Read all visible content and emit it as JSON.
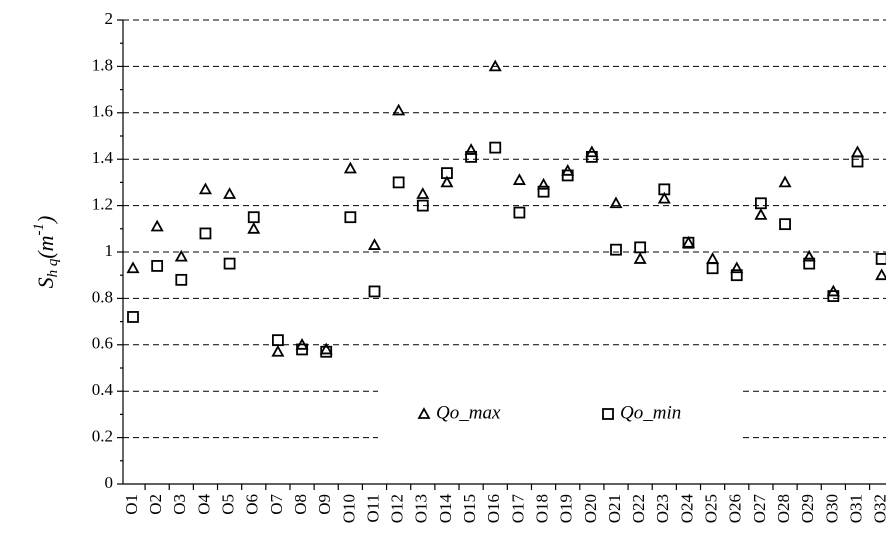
{
  "chart_data": {
    "type": "scatter",
    "y_label": {
      "base": "S",
      "sub": "h q",
      "open": "(m",
      "sup": "-1",
      "close": ")"
    },
    "categories": [
      "O1",
      "O2",
      "O3",
      "O4",
      "O5",
      "O6",
      "O7",
      "O8",
      "O9",
      "O10",
      "O11",
      "O12",
      "O13",
      "O14",
      "O15",
      "O16",
      "O17",
      "O18",
      "O19",
      "O20",
      "O21",
      "O22",
      "O23",
      "O24",
      "O25",
      "O26",
      "O27",
      "O28",
      "O29",
      "O30",
      "O31",
      "O32"
    ],
    "series": [
      {
        "name": "Qo_max",
        "marker": "triangle",
        "color": "#000000",
        "values": [
          0.93,
          1.11,
          0.98,
          1.27,
          1.25,
          1.1,
          0.57,
          0.6,
          0.58,
          1.36,
          1.03,
          1.61,
          1.25,
          1.3,
          1.44,
          1.8,
          1.31,
          1.29,
          1.35,
          1.43,
          1.21,
          0.97,
          1.23,
          1.04,
          0.97,
          0.93,
          1.16,
          1.3,
          0.98,
          0.83,
          1.43,
          0.9
        ]
      },
      {
        "name": "Qo_min",
        "marker": "square",
        "color": "#000000",
        "values": [
          0.72,
          0.94,
          0.88,
          1.08,
          0.95,
          1.15,
          0.62,
          0.58,
          0.57,
          1.15,
          0.83,
          1.3,
          1.2,
          1.34,
          1.41,
          1.45,
          1.17,
          1.26,
          1.33,
          1.41,
          1.01,
          1.02,
          1.27,
          1.04,
          0.93,
          0.9,
          1.21,
          1.12,
          0.95,
          0.81,
          1.39,
          0.97
        ]
      }
    ],
    "ylim": [
      0,
      2
    ],
    "yticks": [
      0,
      0.2,
      0.4,
      0.6,
      0.8,
      1,
      1.2,
      1.4,
      1.6,
      1.8,
      2
    ],
    "grid": true
  }
}
